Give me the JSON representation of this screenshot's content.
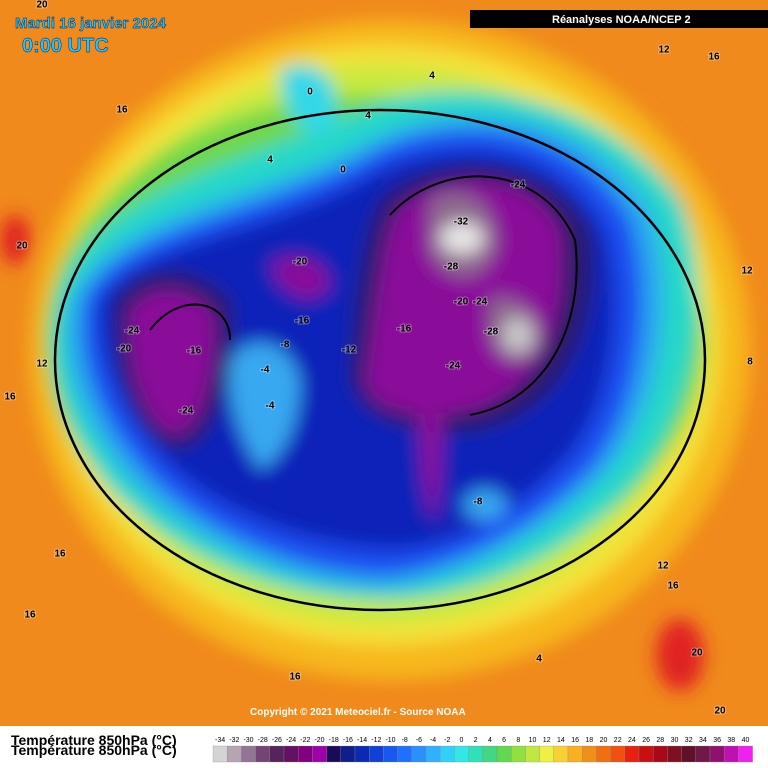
{
  "header": {
    "date": "Mardi 16 janvier 2024",
    "time": "0:00 UTC",
    "source": "Réanalyses NOAA/NCEP 2"
  },
  "map": {
    "contour_labels": [
      "20",
      "16",
      "4",
      "0",
      "4",
      "4",
      "0",
      "12",
      "16",
      "20",
      "12",
      "16",
      "-24",
      "-20",
      "-16",
      "-24",
      "-20",
      "-16",
      "-8",
      "-12",
      "-4",
      "-4",
      "-16",
      "-32",
      "-28",
      "-24",
      "-20",
      "-24",
      "-28",
      "-24",
      "-8",
      "12",
      "8",
      "12",
      "16",
      "16",
      "16",
      "4",
      "20",
      "16",
      "20"
    ],
    "copyright": "Copyright © 2021 Meteociel.fr - Source NOAA"
  },
  "legend": {
    "title": "Température 850hPa (°C)",
    "ticks": [
      -34,
      -32,
      -30,
      -28,
      -26,
      -24,
      -22,
      -20,
      -18,
      -16,
      -14,
      -12,
      -10,
      -8,
      -6,
      -4,
      -2,
      0,
      2,
      4,
      6,
      8,
      10,
      12,
      14,
      16,
      18,
      20,
      22,
      24,
      26,
      28,
      30,
      32,
      34,
      36,
      38,
      40
    ]
  }
}
